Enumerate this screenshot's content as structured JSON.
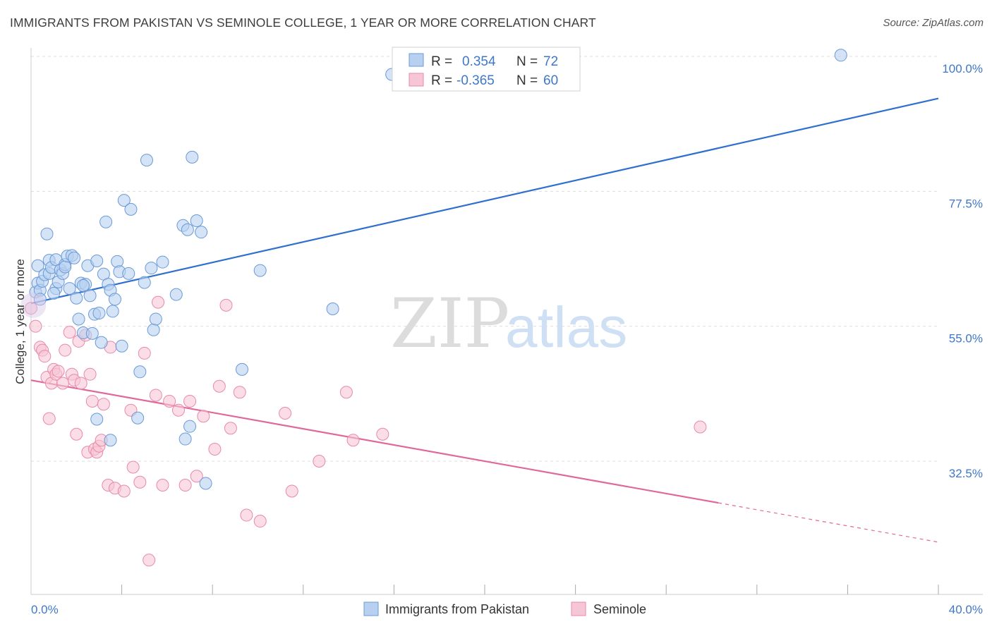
{
  "title": "IMMIGRANTS FROM PAKISTAN VS SEMINOLE COLLEGE, 1 YEAR OR MORE CORRELATION CHART",
  "source": "Source: ZipAtlas.com",
  "watermark": {
    "zip": "ZIP",
    "atlas": "atlas"
  },
  "colors": {
    "blue_fill": "#b8d0f0",
    "blue_stroke": "#6a9ad8",
    "blue_line": "#2f6fcf",
    "pink_fill": "#f6c6d6",
    "pink_stroke": "#e88aa8",
    "pink_line": "#e0689a",
    "grid": "#dddddd",
    "tick_text": "#3f78c9"
  },
  "legend": {
    "rows": [
      {
        "r_label": "R =",
        "r_value": "0.354",
        "n_label": "N =",
        "n_value": "72"
      },
      {
        "r_label": "R =",
        "r_value": "-0.365",
        "n_label": "N =",
        "n_value": "60"
      }
    ]
  },
  "bottom_legend": [
    "Immigrants from Pakistan",
    "Seminole"
  ],
  "chart_data": {
    "type": "scatter",
    "xlabel": "",
    "ylabel": "College, 1 year or more",
    "xlim": [
      0,
      40
    ],
    "ylim": [
      13,
      102
    ],
    "x_tick_labels": [
      "0.0%",
      "40.0%"
    ],
    "y_ticks": [
      32.5,
      55.0,
      77.5,
      100.0
    ],
    "y_tick_labels": [
      "32.5%",
      "55.0%",
      "77.5%",
      "100.0%"
    ],
    "grid": true,
    "legend_position": "top-center",
    "series": [
      {
        "name": "Immigrants from Pakistan",
        "trend": {
          "x": [
            0,
            40
          ],
          "y": [
            58.8,
            93.0
          ],
          "dashed_from": null
        },
        "points": [
          [
            0.2,
            60.7
          ],
          [
            0.3,
            62.2
          ],
          [
            0.3,
            65.1
          ],
          [
            0.4,
            61.0
          ],
          [
            0.4,
            59.5
          ],
          [
            0.5,
            62.5
          ],
          [
            0.6,
            63.6
          ],
          [
            0.7,
            70.4
          ],
          [
            0.8,
            63.8
          ],
          [
            0.8,
            66.0
          ],
          [
            0.9,
            64.8
          ],
          [
            1.1,
            61.3
          ],
          [
            1.1,
            66.1
          ],
          [
            1.2,
            62.4
          ],
          [
            1.3,
            64.4
          ],
          [
            1.4,
            63.8
          ],
          [
            1.5,
            65.3
          ],
          [
            1.5,
            64.9
          ],
          [
            1.6,
            66.7
          ],
          [
            1.7,
            61.3
          ],
          [
            1.8,
            66.8
          ],
          [
            1.9,
            66.4
          ],
          [
            2.0,
            59.7
          ],
          [
            2.1,
            56.2
          ],
          [
            2.2,
            62.2
          ],
          [
            2.3,
            53.9
          ],
          [
            2.4,
            62.0
          ],
          [
            2.5,
            65.1
          ],
          [
            2.6,
            60.1
          ],
          [
            2.7,
            53.8
          ],
          [
            2.8,
            57.0
          ],
          [
            2.9,
            65.9
          ],
          [
            3.0,
            57.2
          ],
          [
            3.1,
            52.3
          ],
          [
            3.2,
            63.7
          ],
          [
            3.3,
            72.4
          ],
          [
            3.4,
            62.0
          ],
          [
            3.5,
            61.0
          ],
          [
            3.6,
            57.5
          ],
          [
            3.7,
            59.5
          ],
          [
            3.8,
            65.8
          ],
          [
            3.9,
            64.1
          ],
          [
            4.0,
            51.7
          ],
          [
            4.1,
            76.0
          ],
          [
            4.3,
            63.8
          ],
          [
            4.4,
            74.5
          ],
          [
            4.7,
            39.7
          ],
          [
            4.8,
            47.4
          ],
          [
            5.0,
            62.3
          ],
          [
            5.1,
            82.7
          ],
          [
            5.3,
            64.7
          ],
          [
            5.4,
            54.4
          ],
          [
            5.5,
            56.2
          ],
          [
            5.8,
            65.7
          ],
          [
            6.4,
            60.3
          ],
          [
            6.7,
            71.8
          ],
          [
            6.8,
            36.2
          ],
          [
            6.9,
            71.1
          ],
          [
            7.0,
            38.3
          ],
          [
            7.1,
            83.2
          ],
          [
            7.3,
            72.6
          ],
          [
            7.5,
            70.7
          ],
          [
            7.7,
            28.8
          ],
          [
            9.3,
            47.8
          ],
          [
            10.1,
            64.3
          ],
          [
            13.3,
            57.9
          ],
          [
            15.9,
            97.0
          ],
          [
            35.7,
            100.2
          ],
          [
            3.5,
            36.0
          ],
          [
            2.9,
            39.5
          ],
          [
            1.0,
            60.5
          ],
          [
            2.3,
            61.8
          ]
        ]
      },
      {
        "name": "Seminole",
        "trend": {
          "x": [
            0,
            40
          ],
          "y": [
            46.0,
            19.0
          ],
          "dashed_from": 30.3
        },
        "points": [
          [
            0.0,
            58.0
          ],
          [
            0.2,
            55.0
          ],
          [
            0.4,
            51.5
          ],
          [
            0.5,
            51.0
          ],
          [
            0.6,
            50.0
          ],
          [
            0.7,
            46.5
          ],
          [
            0.8,
            39.6
          ],
          [
            0.9,
            45.5
          ],
          [
            1.0,
            47.8
          ],
          [
            1.1,
            47.0
          ],
          [
            1.2,
            47.5
          ],
          [
            1.4,
            45.5
          ],
          [
            1.5,
            51.0
          ],
          [
            1.7,
            54.0
          ],
          [
            1.8,
            47.0
          ],
          [
            1.9,
            46.0
          ],
          [
            2.0,
            37.0
          ],
          [
            2.1,
            52.5
          ],
          [
            2.2,
            45.5
          ],
          [
            2.4,
            53.5
          ],
          [
            2.5,
            34.0
          ],
          [
            2.6,
            47.0
          ],
          [
            2.7,
            42.5
          ],
          [
            2.8,
            34.5
          ],
          [
            2.9,
            34.0
          ],
          [
            3.0,
            35.0
          ],
          [
            3.1,
            36.0
          ],
          [
            3.2,
            42.0
          ],
          [
            3.4,
            28.5
          ],
          [
            3.5,
            51.5
          ],
          [
            3.7,
            28.0
          ],
          [
            4.1,
            27.5
          ],
          [
            4.4,
            41.0
          ],
          [
            4.5,
            31.5
          ],
          [
            4.8,
            29.0
          ],
          [
            5.0,
            50.5
          ],
          [
            5.2,
            16.0
          ],
          [
            5.5,
            43.5
          ],
          [
            5.6,
            59.0
          ],
          [
            5.8,
            28.5
          ],
          [
            6.1,
            42.5
          ],
          [
            6.5,
            41.0
          ],
          [
            6.8,
            28.5
          ],
          [
            7.0,
            42.5
          ],
          [
            7.3,
            30.0
          ],
          [
            7.6,
            40.0
          ],
          [
            8.1,
            34.5
          ],
          [
            8.3,
            45.0
          ],
          [
            8.6,
            58.5
          ],
          [
            8.8,
            38.0
          ],
          [
            9.2,
            44.0
          ],
          [
            9.5,
            23.5
          ],
          [
            10.1,
            22.5
          ],
          [
            11.2,
            40.5
          ],
          [
            11.5,
            27.5
          ],
          [
            12.7,
            32.5
          ],
          [
            13.9,
            44.0
          ],
          [
            14.2,
            36.0
          ],
          [
            15.5,
            37.0
          ],
          [
            29.5,
            38.2
          ]
        ]
      }
    ]
  }
}
